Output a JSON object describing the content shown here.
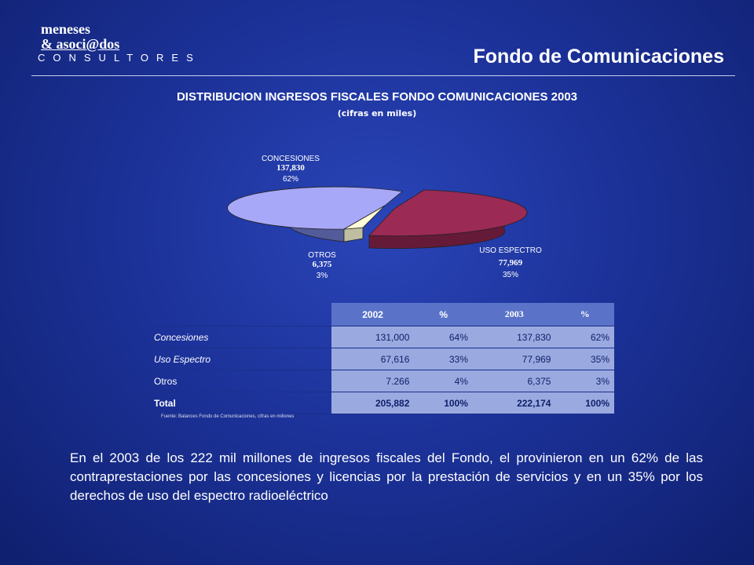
{
  "logo": {
    "line1": "meneses",
    "line2": "& asoci@dos",
    "line3": "CONSULTORES"
  },
  "slide_title": "Fondo de Comunicaciones",
  "chart_data": {
    "type": "pie",
    "title": "DISTRIBUCION INGRESOS FISCALES FONDO COMUNICACIONES 2003",
    "subtitle": "(cifras en miles)",
    "slices": [
      {
        "name": "CONCESIONES",
        "value": "137,830",
        "percent": "62%",
        "fraction": 0.62,
        "color": "#a8a8f8"
      },
      {
        "name": "USO ESPECTRO",
        "value": "77,969",
        "percent": "35%",
        "fraction": 0.35,
        "color": "#9b2a55"
      },
      {
        "name": "OTROS",
        "value": "6,375",
        "percent": "3%",
        "fraction": 0.03,
        "color": "#fffcd8"
      }
    ]
  },
  "table": {
    "headers": [
      "",
      "2002",
      "%",
      "2003",
      "%"
    ],
    "rows": [
      {
        "name": "Concesiones",
        "v2002": "131,000",
        "p2002": "64%",
        "v2003": "137,830",
        "p2003": "62%"
      },
      {
        "name": "Uso Espectro",
        "v2002": "67,616",
        "p2002": "33%",
        "v2003": "77,969",
        "p2003": "35%"
      },
      {
        "name": "Otros",
        "v2002": "7.266",
        "p2002": "4%",
        "v2003": "6,375",
        "p2003": "3%"
      },
      {
        "name": "Total",
        "v2002": "205,882",
        "p2002": "100%",
        "v2003": "222,174",
        "p2003": "100%"
      }
    ],
    "source": "Fuente: Balances Fondo de Comunicaciones, cifras en millones"
  },
  "paragraph": "En el 2003 de los 222 mil millones de ingresos fiscales del Fondo, el provinieron en un 62% de las contraprestaciones por las concesiones y licencias por la prestación de servicios y en un 35% por los derechos de uso del espectro radioeléctrico"
}
